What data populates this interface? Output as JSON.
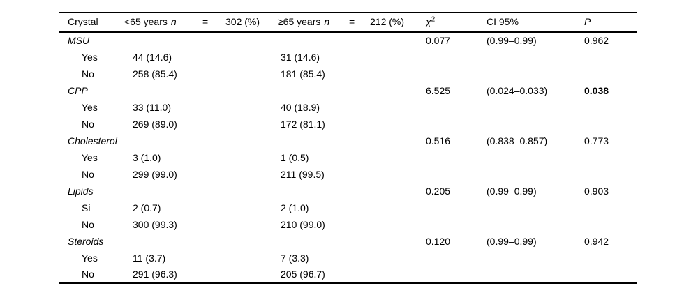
{
  "page": {
    "background": "#ffffff",
    "text_color": "#000000"
  },
  "table": {
    "header": {
      "crystal": "Crystal",
      "under65": {
        "label": "<65 years",
        "n": "n",
        "eq": "=",
        "count": "302 (%)"
      },
      "over65": {
        "label": "≥65 years",
        "n": "n",
        "eq": "=",
        "count": "212 (%)"
      },
      "chi": {
        "symbol": "χ",
        "sup": "2"
      },
      "ci": "CI 95%",
      "p": "P"
    },
    "sections": [
      {
        "name": "MSU",
        "chi2": "0.077",
        "ci": "(0.99–0.99)",
        "p": "0.962",
        "p_bold": false,
        "rows": [
          {
            "label": "Yes",
            "under65": "44 (14.6)",
            "over65": "31 (14.6)"
          },
          {
            "label": "No",
            "under65": "258 (85.4)",
            "over65": "181 (85.4)"
          }
        ]
      },
      {
        "name": "CPP",
        "chi2": "6.525",
        "ci": "(0.024–0.033)",
        "p": "0.038",
        "p_bold": true,
        "rows": [
          {
            "label": "Yes",
            "under65": "33 (11.0)",
            "over65": "40 (18.9)"
          },
          {
            "label": "No",
            "under65": "269 (89.0)",
            "over65": "172 (81.1)"
          }
        ]
      },
      {
        "name": "Cholesterol",
        "chi2": "0.516",
        "ci": "(0.838–0.857)",
        "p": "0.773",
        "p_bold": false,
        "rows": [
          {
            "label": "Yes",
            "under65": "3 (1.0)",
            "over65": "1 (0.5)"
          },
          {
            "label": "No",
            "under65": "299 (99.0)",
            "over65": "211 (99.5)"
          }
        ]
      },
      {
        "name": "Lipids",
        "chi2": "0.205",
        "ci": "(0.99–0.99)",
        "p": "0.903",
        "p_bold": false,
        "rows": [
          {
            "label": "Si",
            "under65": "2 (0.7)",
            "over65": "2 (1.0)"
          },
          {
            "label": "No",
            "under65": "300 (99.3)",
            "over65": "210 (99.0)"
          }
        ]
      },
      {
        "name": "Steroids",
        "chi2": "0.120",
        "ci": "(0.99–0.99)",
        "p": "0.942",
        "p_bold": false,
        "rows": [
          {
            "label": "Yes",
            "under65": "11 (3.7)",
            "over65": "7 (3.3)"
          },
          {
            "label": "No",
            "under65": "291 (96.3)",
            "over65": "205 (96.7)"
          }
        ]
      }
    ]
  }
}
